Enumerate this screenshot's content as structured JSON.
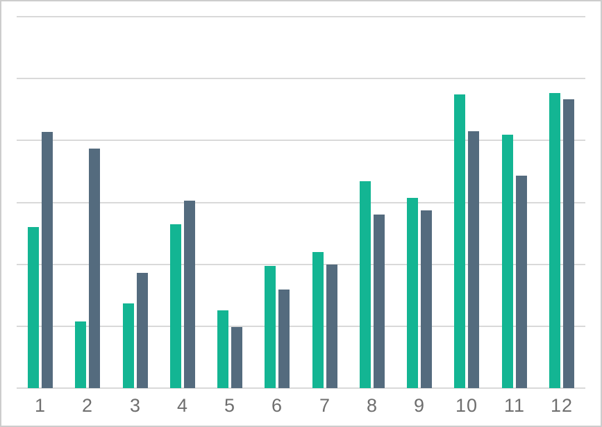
{
  "chart_data": {
    "type": "bar",
    "title": "",
    "xlabel": "",
    "ylabel": "",
    "categories": [
      "1",
      "2",
      "3",
      "4",
      "5",
      "6",
      "7",
      "8",
      "9",
      "10",
      "11",
      "12"
    ],
    "series": [
      {
        "name": "green-series",
        "color": "#13b593",
        "values": [
          26.0,
          10.8,
          13.7,
          26.5,
          12.6,
          19.7,
          22.0,
          33.4,
          30.7,
          47.4,
          40.9,
          47.7
        ]
      },
      {
        "name": "slate-series",
        "color": "#546b7e",
        "values": [
          41.4,
          38.7,
          18.6,
          30.3,
          9.9,
          15.9,
          20.0,
          28.0,
          28.7,
          41.5,
          34.3,
          46.7
        ]
      }
    ],
    "ylim": [
      0,
      60
    ],
    "y_gridline_step": 10,
    "y_tick_labels_visible": false,
    "grid": true,
    "legend": false
  },
  "style": {
    "background_color": "#ffffff",
    "border_color": "#cdcdcd",
    "gridline_color": "#d9d9d9",
    "x_label_color": "#6e6e6e"
  }
}
